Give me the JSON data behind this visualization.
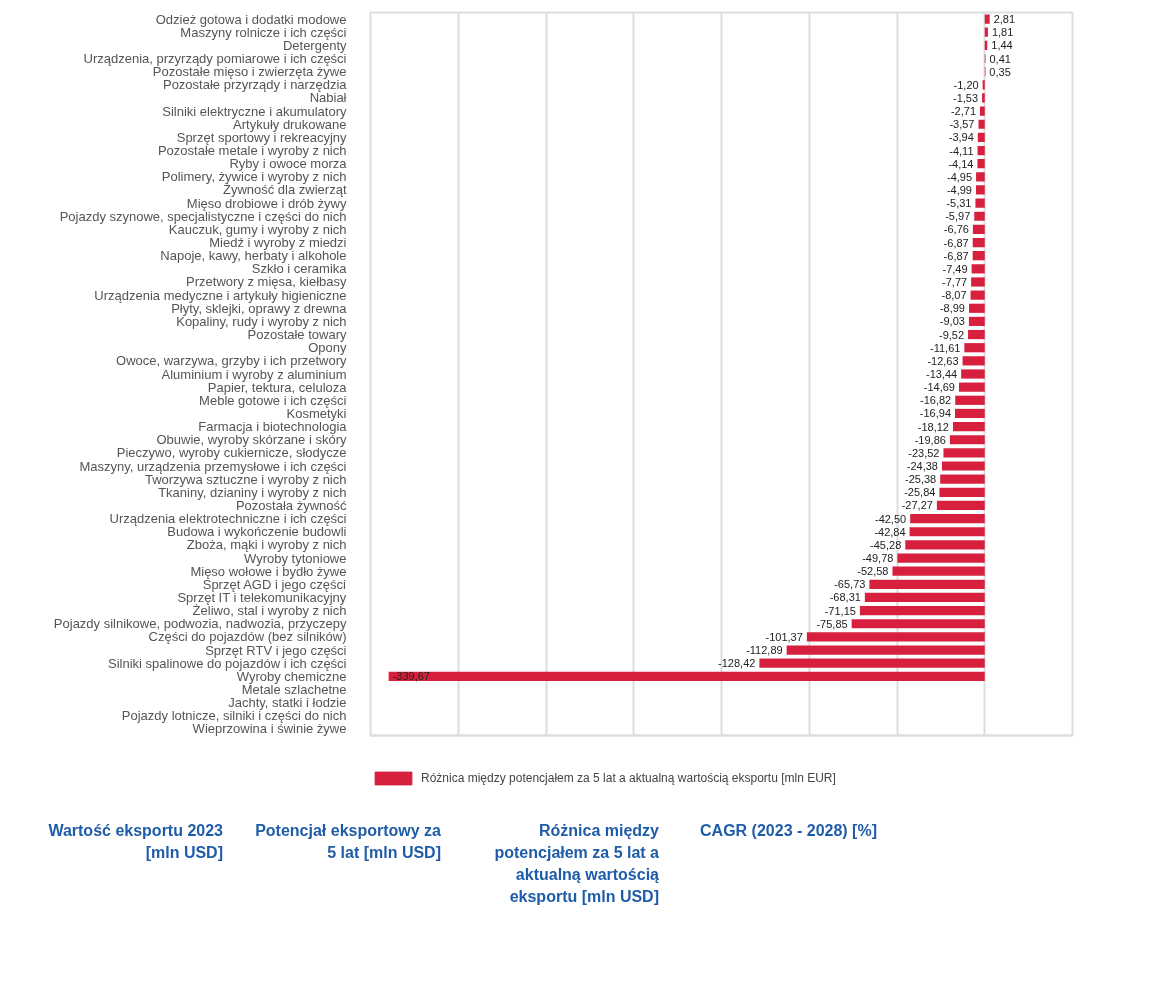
{
  "chart_data": {
    "type": "bar",
    "orientation": "horizontal",
    "categories": [
      "Odzież gotowa i dodatki modowe",
      "Maszyny rolnicze i ich części",
      "Detergenty",
      "Urządzenia, przyrządy pomiarowe i ich części",
      "Pozostałe mięso i zwierzęta żywe",
      "Pozostałe przyrządy i narzędzia",
      "Nabiał",
      "Silniki elektryczne i akumulatory",
      "Artykuły drukowane",
      "Sprzęt sportowy i rekreacyjny",
      "Pozostałe metale i wyroby z nich",
      "Ryby i owoce morza",
      "Polimery, żywice i wyroby z nich",
      "Żywność dla zwierząt",
      "Mięso drobiowe i drób żywy",
      "Pojazdy szynowe, specjalistyczne i części do nich",
      "Kauczuk, gumy i wyroby z nich",
      "Miedź i wyroby z miedzi",
      "Napoje, kawy, herbaty i alkohole",
      "Szkło i ceramika",
      "Przetwory z mięsa, kiełbasy",
      "Urządzenia medyczne i artykuły higieniczne",
      "Płyty, sklejki, oprawy z drewna",
      "Kopaliny, rudy i wyroby z nich",
      "Pozostałe towary",
      "Opony",
      "Owoce, warzywa, grzyby i ich przetwory",
      "Aluminium i wyroby z aluminium",
      "Papier, tektura, celuloza",
      "Meble gotowe i ich części",
      "Kosmetyki",
      "Farmacja i biotechnologia",
      "Obuwie, wyroby skórzane i skóry",
      "Pieczywo, wyroby cukiernicze, słodycze",
      "Maszyny, urządzenia przemysłowe i ich części",
      "Tworzywa sztuczne i wyroby z nich",
      "Tkaniny, dzianiny i wyroby z nich",
      "Pozostała żywność",
      "Urządzenia elektrotechniczne i ich części",
      "Budowa i wykończenie budowli",
      "Zboża, mąki i wyroby z nich",
      "Wyroby tytoniowe",
      "Mięso wołowe i bydło żywe",
      "Sprzęt AGD i jego części",
      "Sprzęt IT i telekomunikacyjny",
      "Żeliwo, stal i wyroby z nich",
      "Pojazdy silnikowe, podwozia, nadwozia, przyczepy",
      "Części do pojazdów (bez silników)",
      "Sprzęt RTV i jego części",
      "Silniki spalinowe do pojazdów i ich części",
      "Wyroby chemiczne",
      "Metale szlachetne",
      "Jachty, statki i łodzie",
      "Pojazdy lotnicze, silniki i części do nich",
      "Wieprzowina i świnie żywe"
    ],
    "series": [
      {
        "name": "Różnica między potencjałem za 5 lat a aktualną wartością eksportu [mln EUR]",
        "color": "#d6203e",
        "values": [
          2.81,
          1.81,
          1.44,
          0.41,
          0.35,
          -1.2,
          -1.53,
          -2.71,
          -3.57,
          -3.94,
          -4.11,
          -4.14,
          -4.95,
          -4.99,
          -5.31,
          -5.97,
          -6.76,
          -6.87,
          -6.87,
          -7.49,
          -7.77,
          -8.07,
          -8.99,
          -9.03,
          -9.52,
          -11.61,
          -12.63,
          -13.44,
          -14.69,
          -16.82,
          -16.94,
          -18.12,
          -19.86,
          -23.52,
          -24.38,
          -25.38,
          -25.84,
          -27.27,
          -42.5,
          -42.84,
          -45.28,
          -49.78,
          -52.58,
          -65.73,
          -68.31,
          -71.15,
          -75.85,
          -101.37,
          -112.89,
          -128.42,
          -339.67,
          null,
          null,
          null,
          null
        ],
        "value_labels": [
          "2,81",
          "1,81",
          "1,44",
          "0,41",
          "0,35",
          "-1,20",
          "-1,53",
          "-2,71",
          "-3,57",
          "-3,94",
          "-4,11",
          "-4,14",
          "-4,95",
          "-4,99",
          "-5,31",
          "-5,97",
          "-6,76",
          "-6,87",
          "-6,87",
          "-7,49",
          "-7,77",
          "-8,07",
          "-8,99",
          "-9,03",
          "-9,52",
          "-11,61",
          "-12,63",
          "-13,44",
          "-14,69",
          "-16,82",
          "-16,94",
          "-18,12",
          "-19,86",
          "-23,52",
          "-24,38",
          "-25,38",
          "-25,84",
          "-27,27",
          "-42,50",
          "-42,84",
          "-45,28",
          "-49,78",
          "-52,58",
          "-65,73",
          "-68,31",
          "-71,15",
          "-75,85",
          "-101,37",
          "-112,89",
          "-128,42",
          "-339,67",
          null,
          null,
          null,
          null
        ]
      }
    ],
    "xlim": [
      -350,
      50
    ],
    "xticks": [
      {
        "value": -300,
        "label": null
      },
      {
        "value": -250,
        "label": null
      },
      {
        "value": -200,
        "label": null
      },
      {
        "value": -150,
        "label": null
      },
      {
        "value": -100,
        "label": null
      },
      {
        "value": -50,
        "label": null
      },
      {
        "value": 0,
        "label": null
      }
    ],
    "tick_labels": "y",
    "grid": "x",
    "legend": "bottom",
    "annotations": [
      "Wartość eksportu 2023 [mln USD]",
      "Potencjał eksportowy za 5 lat [mln USD]",
      "Różnica między potencjałem za 5 lat a aktualną wartością eksportu [mln USD]",
      "CAGR (2023 - 2028) [%]"
    ]
  }
}
